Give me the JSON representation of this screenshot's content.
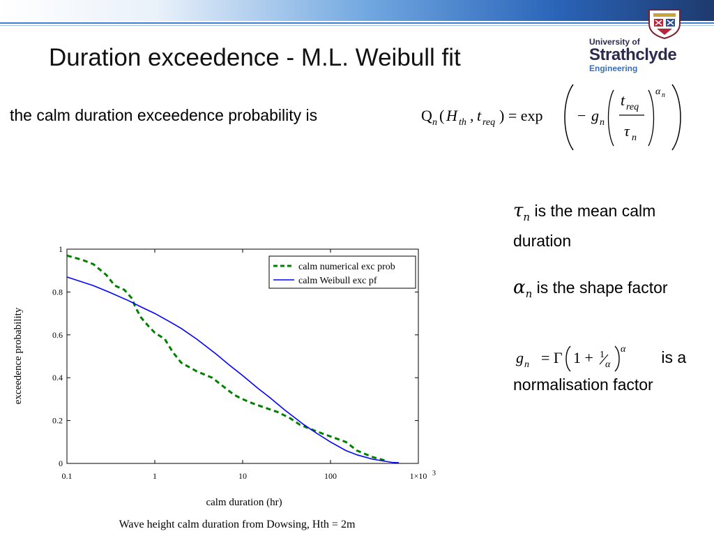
{
  "slide": {
    "title": "Duration exceedence - M.L. Weibull fit",
    "lead_text": "the calm duration exceedence probability is",
    "formula_text": "Q_n(H_th, t_req) = exp( − g_n ( t_req / τ_n )^α_n )",
    "notes": [
      {
        "symbol": "τ",
        "subscript": "n",
        "text": "is the mean calm duration"
      },
      {
        "symbol": "α",
        "subscript": "n",
        "text": "is the shape factor"
      },
      {
        "formula_text": "g_n = Γ(1 + 1/α)^α",
        "text_suffix": "is a",
        "text": "normalisation factor"
      }
    ],
    "colors": {
      "accent_blue": "#2a64b8",
      "numerical": "#008000",
      "weibull": "#0000ff"
    }
  },
  "logo": {
    "line1": "University of",
    "line2": "Strathclyde",
    "line3": "Engineering"
  },
  "chart_data": {
    "type": "line",
    "title": "Wave height calm duration from Dowsing, Hth = 2m",
    "xlabel": "calm duration (hr)",
    "ylabel": "exceedence probability",
    "x_scale": "log",
    "xlim": [
      0.1,
      1000
    ],
    "ylim": [
      0,
      1
    ],
    "x_ticks": [
      0.1,
      1,
      10,
      100,
      1000
    ],
    "x_tick_labels": [
      "0.1",
      "1",
      "10",
      "100",
      "1×10"
    ],
    "x_tick_exponent": "3",
    "y_ticks": [
      0,
      0.2,
      0.4,
      0.6,
      0.8,
      1
    ],
    "y_tick_labels": [
      "0",
      "0.2",
      "0.4",
      "0.6",
      "0.8",
      "1"
    ],
    "legend_position": "top-right",
    "series": [
      {
        "name": "calm numerical exc prob",
        "style": "dashed",
        "color": "#008000",
        "x": [
          0.1,
          0.15,
          0.2,
          0.28,
          0.35,
          0.45,
          0.55,
          0.6,
          0.7,
          0.85,
          1.0,
          1.3,
          1.6,
          2.0,
          3.0,
          4.5,
          6.0,
          8.0,
          10,
          13,
          18,
          25,
          35,
          45,
          60,
          80,
          110,
          150,
          200,
          300,
          450
        ],
        "y": [
          0.97,
          0.95,
          0.93,
          0.88,
          0.83,
          0.81,
          0.77,
          0.73,
          0.68,
          0.64,
          0.61,
          0.58,
          0.52,
          0.47,
          0.43,
          0.4,
          0.36,
          0.32,
          0.3,
          0.28,
          0.26,
          0.24,
          0.21,
          0.18,
          0.16,
          0.14,
          0.12,
          0.1,
          0.06,
          0.03,
          0.01
        ]
      },
      {
        "name": "calm Weibull exc pf",
        "style": "solid",
        "color": "#0000ff",
        "x": [
          0.1,
          0.2,
          0.3,
          0.5,
          0.7,
          1,
          1.5,
          2,
          3,
          5,
          7,
          10,
          15,
          20,
          30,
          50,
          70,
          100,
          150,
          200,
          300,
          500,
          600
        ],
        "y": [
          0.87,
          0.83,
          0.8,
          0.76,
          0.73,
          0.7,
          0.66,
          0.63,
          0.58,
          0.51,
          0.46,
          0.41,
          0.35,
          0.31,
          0.25,
          0.18,
          0.14,
          0.1,
          0.06,
          0.04,
          0.02,
          0.005,
          0.003
        ]
      }
    ]
  }
}
